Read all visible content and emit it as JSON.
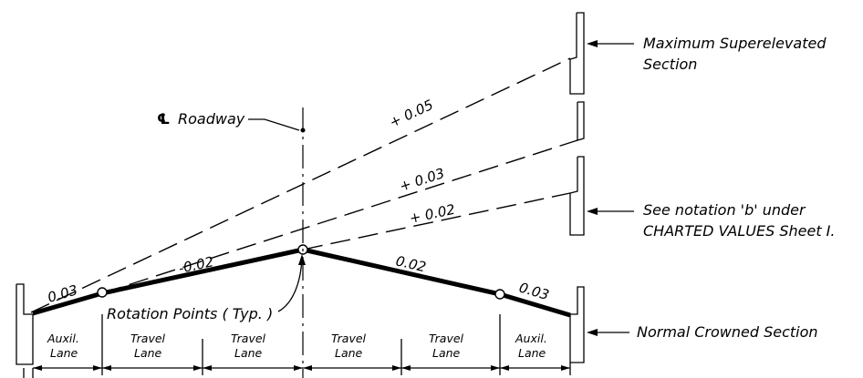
{
  "labels": {
    "max_section": [
      "Maximum Superelevated",
      "Section"
    ],
    "see_notation": [
      "See notation 'b' under",
      "CHARTED VALUES Sheet I."
    ],
    "normal_section": "Normal Crowned Section",
    "roadway": "Roadway",
    "centerline_symbol": "℄",
    "rotation_points": "Rotation Points ( Typ. )"
  },
  "slopes": {
    "s005": "+ 0.05",
    "s003_plus": "+ 0.03",
    "s002_plus": "+ 0.02",
    "left_outer": "0.03",
    "left_inner": "-0.02",
    "right_inner": "0.02",
    "right_outer": "0.03"
  },
  "lanes": [
    [
      "Auxil.",
      "Lane"
    ],
    [
      "Travel",
      "Lane"
    ],
    [
      "Travel",
      "Lane"
    ],
    [
      "Travel",
      "Lane"
    ],
    [
      "Travel",
      "Lane"
    ],
    [
      "Auxil.",
      "Lane"
    ]
  ]
}
